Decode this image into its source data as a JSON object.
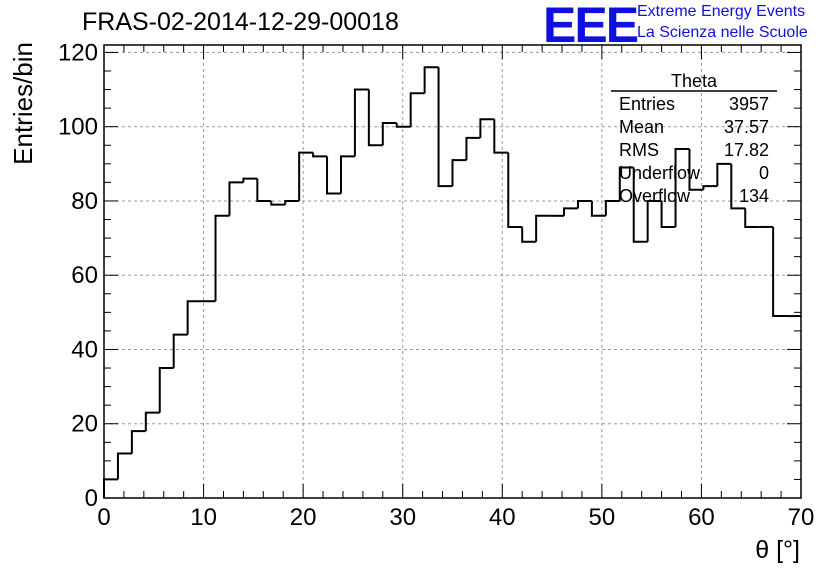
{
  "header": {
    "title": "FRAS-02-2014-12-29-00018",
    "logo_text": "EEE",
    "logo_line1": "Extreme Energy Events",
    "logo_line2": "La Scienza nelle Scuole",
    "logo_color": "#1010e0"
  },
  "stats": {
    "title": "Theta",
    "rows": [
      {
        "label": "Entries",
        "value": "3957"
      },
      {
        "label": "Mean",
        "value": "37.57"
      },
      {
        "label": "RMS",
        "value": "17.82"
      },
      {
        "label": "Underflow",
        "value": "0"
      },
      {
        "label": "Overflow",
        "value": "134"
      }
    ]
  },
  "chart_data": {
    "type": "bar",
    "style": "step-histogram",
    "xlabel": "θ [°]",
    "ylabel": "Entries/bin",
    "xlim": [
      0,
      70
    ],
    "ylim": [
      0,
      122
    ],
    "xticks": [
      0,
      10,
      20,
      30,
      40,
      50,
      60,
      70
    ],
    "yticks": [
      0,
      20,
      40,
      60,
      80,
      100,
      120
    ],
    "grid": true,
    "bin_width": 1.4,
    "bin_edges_start": 0,
    "values": [
      5,
      12,
      18,
      23,
      35,
      44,
      53,
      53,
      76,
      85,
      86,
      80,
      79,
      80,
      93,
      92,
      82,
      92,
      110,
      95,
      101,
      100,
      109,
      116,
      84,
      91,
      97,
      102,
      93,
      73,
      69,
      76,
      76,
      78,
      80,
      76,
      80,
      89,
      69,
      80,
      73,
      94,
      83,
      84,
      90,
      78,
      73,
      73,
      49,
      49
    ]
  }
}
